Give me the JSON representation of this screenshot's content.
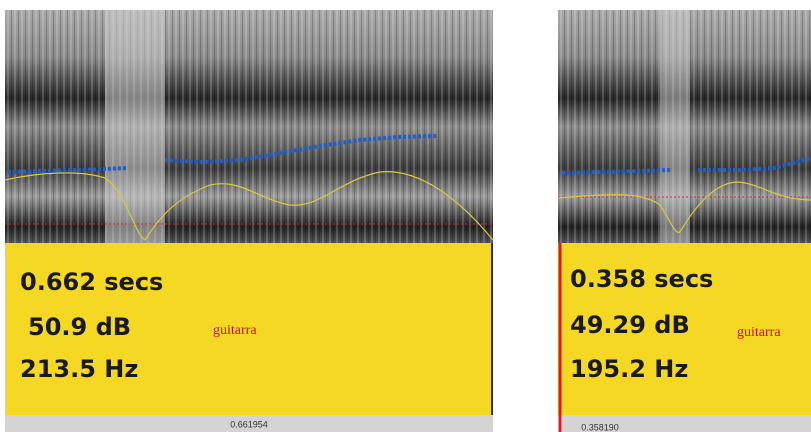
{
  "panels": [
    {
      "duration": "0.662 secs",
      "intensity": "50.9 dB",
      "pitch": "213.5 Hz",
      "word": "guitarra",
      "time": "0.661954"
    },
    {
      "duration": "0.358 secs",
      "intensity": "49.29 dB",
      "pitch": "195.2 Hz",
      "word": "guitarra",
      "time": "0.358190"
    }
  ]
}
